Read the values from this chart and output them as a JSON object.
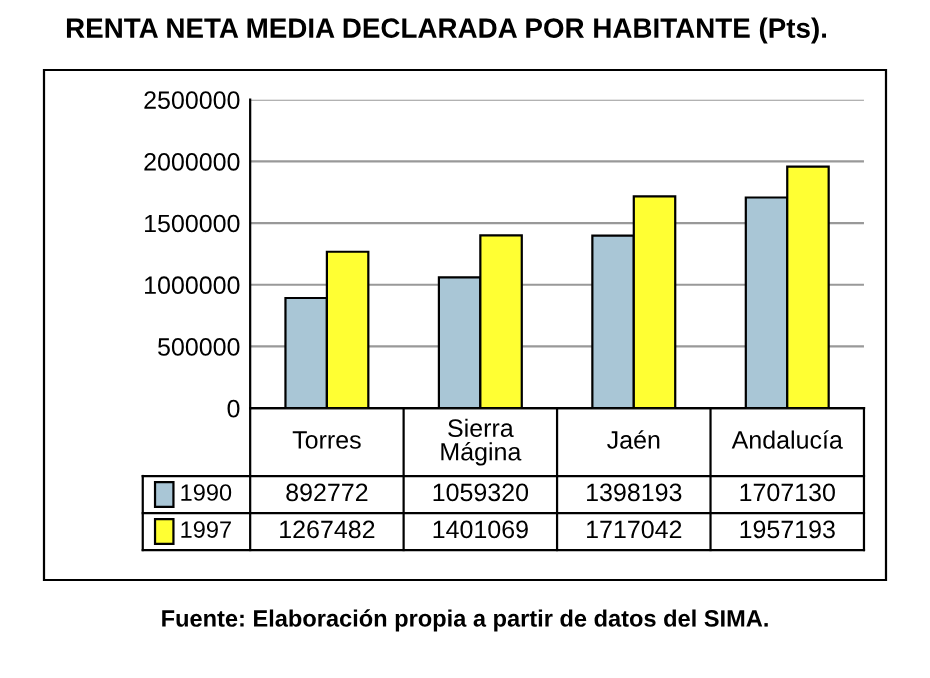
{
  "chart_data": {
    "type": "bar",
    "title": "RENTA NETA MEDIA DECLARADA POR HABITANTE (Pts).",
    "categories": [
      "Torres",
      "Sierra\nMágina",
      "Jaén",
      "Andalucía"
    ],
    "series": [
      {
        "name": "1990",
        "color": "#a9c6d6",
        "values": [
          892772,
          1059320,
          1398193,
          1707130
        ]
      },
      {
        "name": "1997",
        "color": "#ffff33",
        "values": [
          1267482,
          1401069,
          1717042,
          1957193
        ]
      }
    ],
    "ylim": [
      0,
      2500000
    ],
    "yticks": [
      0,
      500000,
      1000000,
      1500000,
      2000000,
      2500000
    ],
    "grid": "y",
    "legend": "bottom",
    "data_labels": true,
    "annotations": [
      "Fuente: Elaboración propia a partir de datos del SIMA."
    ]
  }
}
